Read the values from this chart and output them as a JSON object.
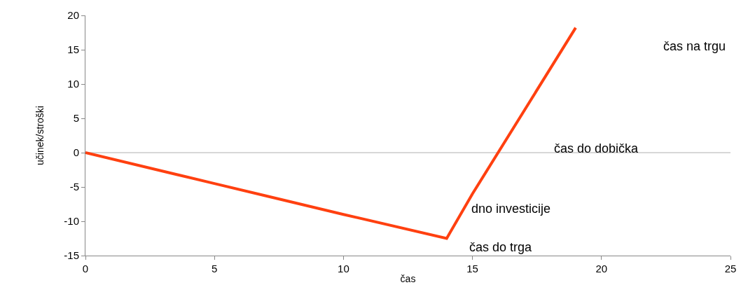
{
  "chart_data": {
    "type": "line",
    "xlabel": "čas",
    "ylabel": "učinek/stroški",
    "x": [
      0,
      5,
      7,
      10,
      14,
      15,
      19
    ],
    "series": [
      {
        "color": "#ff4010",
        "values": [
          0,
          -4.5,
          -6.3,
          -9,
          -12.5,
          -6,
          18.2
        ]
      }
    ],
    "xlim": [
      0,
      25
    ],
    "xticks": [
      0,
      5,
      10,
      15,
      20,
      25
    ],
    "ylim": [
      -15,
      20
    ],
    "yticks": [
      -15,
      -10,
      -5,
      0,
      5,
      10,
      15,
      20
    ],
    "grid": false,
    "marker": "none",
    "line_style": "solid",
    "ref_lines": [
      {
        "axis": "y",
        "value": 0,
        "color": "#b0b0b0"
      }
    ],
    "annotations": [
      "čas na trgu",
      "čas do dobička",
      "dno investicije",
      "čas do trga"
    ]
  }
}
